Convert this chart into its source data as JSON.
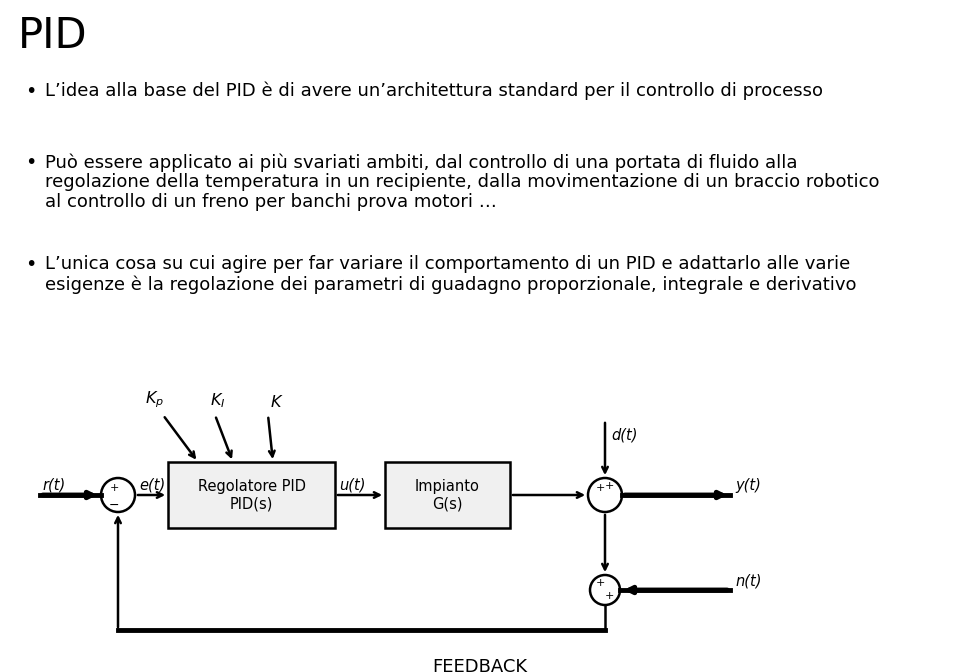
{
  "title": "PID",
  "bullet1": "L’idea alla base del PID è di avere un’architettura standard per il controllo di processo",
  "bullet2_line1": "Può essere applicato ai più svariati ambiti, dal controllo di una portata di fluido alla",
  "bullet2_line2": "regolazione della temperatura in un recipiente, dalla movimentazione di un braccio robotico",
  "bullet2_line3": "al controllo di un freno per banchi prova motori …",
  "bullet3_line1": "L’unica cosa su cui agire per far variare il comportamento di un PID e adattarlo alle varie",
  "bullet3_line2": "esigenze è la regolazione dei parametri di guadagno proporzionale, integrale e derivativo",
  "feedback_label": "FEEDBACK",
  "bg_color": "#ffffff",
  "text_color": "#000000",
  "diagram_color": "#000000",
  "title_fontsize": 30,
  "body_fontsize": 13.0,
  "diagram_fontsize": 10.5,
  "diagram_label_fontsize": 10.0
}
